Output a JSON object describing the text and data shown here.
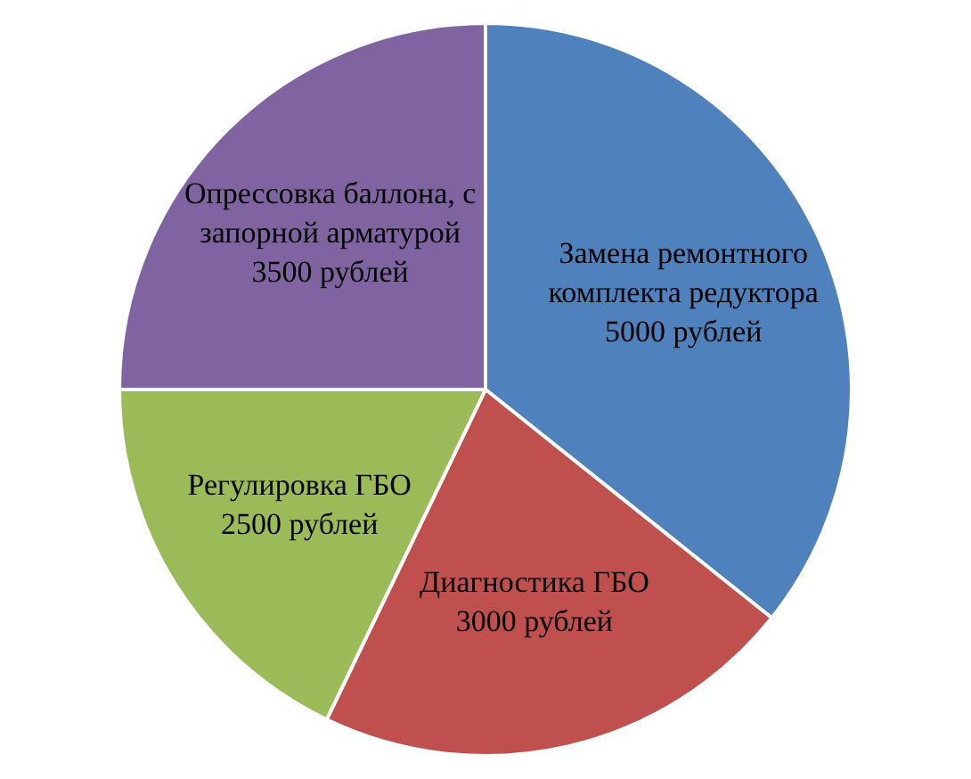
{
  "chart_data": {
    "type": "pie",
    "categories": [
      "Замена ремонтного комплекта редуктора",
      "Диагностика ГБО",
      "Регулировка ГБО",
      "Опрессовка баллона, с запорной арматурой"
    ],
    "values": [
      5000,
      3000,
      2500,
      3500
    ],
    "value_labels": [
      "5000 рублей",
      "3000 рублей",
      "2500 рублей",
      "3500 рублей"
    ],
    "colors": [
      "#4f81bd",
      "#c0504d",
      "#9bbb59",
      "#8064a2"
    ],
    "legend": false
  }
}
